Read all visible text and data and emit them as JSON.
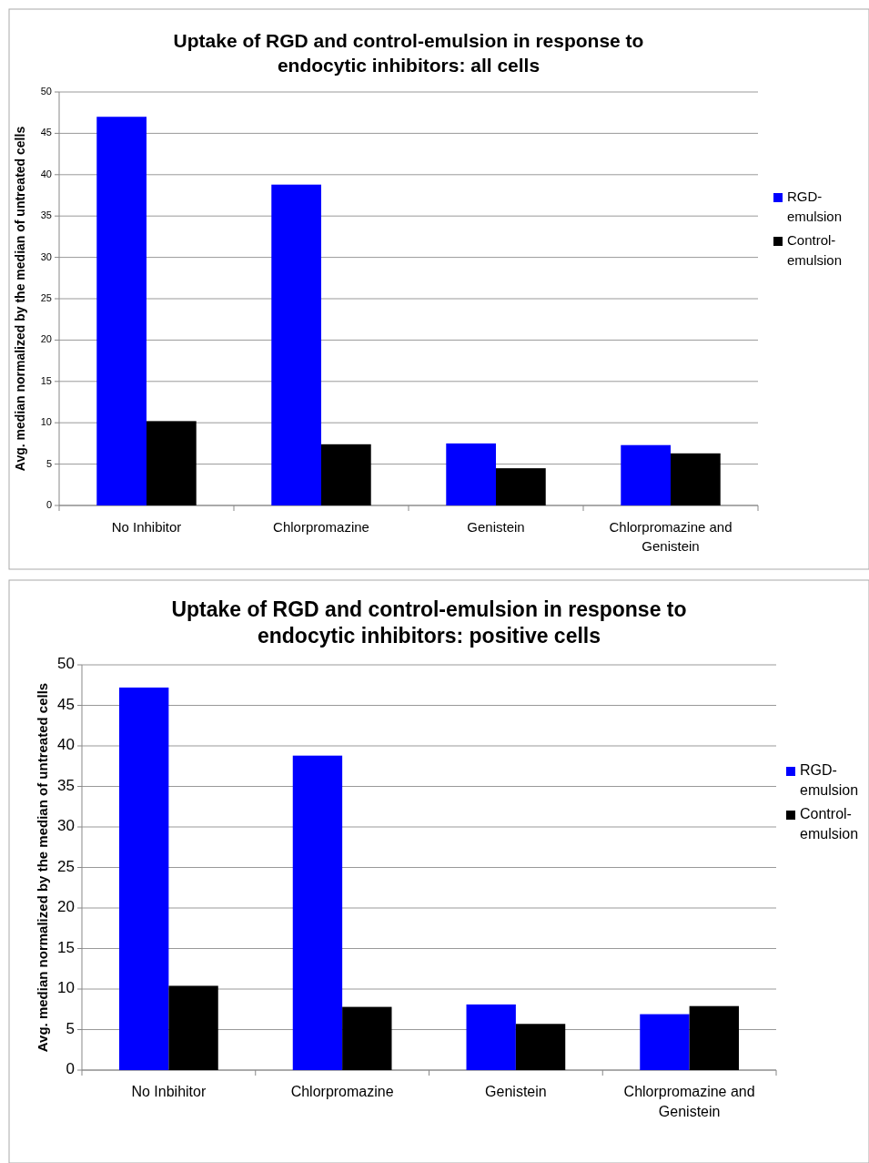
{
  "chart_data": [
    {
      "type": "bar",
      "title": "Uptake of RGD and control-emulsion in response to endocytic inhibitors: all cells",
      "ylabel": "Avg. median normalized by the median of untreated cells",
      "categories": [
        "No Inhibitor",
        "Chlorpromazine",
        "Genistein",
        "Chlorpromazine and Genistein"
      ],
      "series": [
        {
          "name": "RGD-emulsion",
          "color": "#0000ff",
          "values": [
            47.0,
            38.8,
            7.5,
            7.3
          ]
        },
        {
          "name": "Control-emulsion",
          "color": "#000000",
          "values": [
            10.2,
            7.4,
            4.5,
            6.3
          ]
        }
      ],
      "ylim": [
        0,
        50
      ],
      "yticks": [
        0,
        5,
        10,
        15,
        20,
        25,
        30,
        35,
        40,
        45,
        50
      ],
      "grid": "y",
      "legend": "right"
    },
    {
      "type": "bar",
      "title": "Uptake of RGD and control-emulsion in response to endocytic inhibitors: positive cells",
      "ylabel": "Avg. median normalized by the median of untreated cells",
      "categories": [
        "No Inbihitor",
        "Chlorpromazine",
        "Genistein",
        "Chlorpromazine and Genistein"
      ],
      "series": [
        {
          "name": "RGD-emulsion",
          "color": "#0000ff",
          "values": [
            47.2,
            38.8,
            8.1,
            6.9
          ]
        },
        {
          "name": "Control-emulsion",
          "color": "#000000",
          "values": [
            10.4,
            7.8,
            5.7,
            7.9
          ]
        }
      ],
      "ylim": [
        0,
        50
      ],
      "yticks": [
        0,
        5,
        10,
        15,
        20,
        25,
        30,
        35,
        40,
        45,
        50
      ],
      "grid": "y",
      "legend": "right"
    }
  ]
}
